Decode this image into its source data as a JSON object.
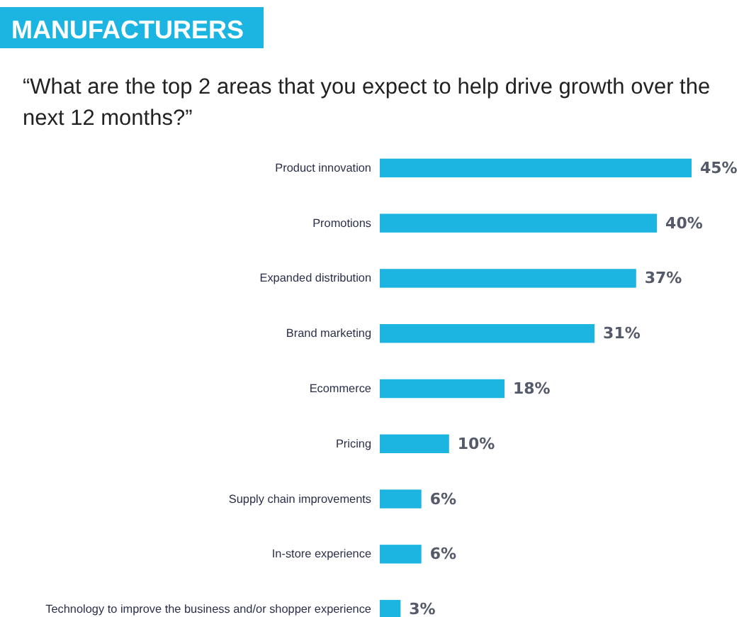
{
  "chart_data": {
    "type": "bar",
    "orientation": "horizontal",
    "title": "MANUFACTURERS",
    "subtitle": "“What are the top 2 areas that you expect to help drive growth over the next 12 months?”",
    "categories": [
      "Product innovation",
      "Promotions",
      "Expanded distribution",
      "Brand marketing",
      "Ecommerce",
      "Pricing",
      "Supply chain improvements",
      "In-store experience",
      "Technology to improve the business and/or shopper experience"
    ],
    "values": [
      45,
      40,
      37,
      31,
      18,
      10,
      6,
      6,
      3
    ],
    "value_labels": [
      "45%",
      "40%",
      "37%",
      "31%",
      "18%",
      "10%",
      "6%",
      "6%",
      "3%"
    ],
    "color": "#1cb4e0"
  }
}
